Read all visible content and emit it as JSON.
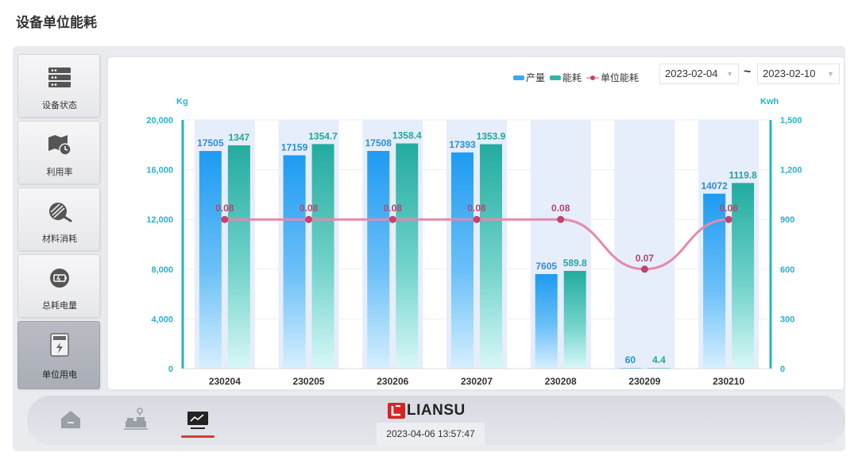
{
  "page": {
    "title": "设备单位能耗"
  },
  "sidebar": {
    "items": [
      {
        "label": "设备状态",
        "icon": "server-rack-icon",
        "active": false
      },
      {
        "label": "利用率",
        "icon": "map-clock-icon",
        "active": false
      },
      {
        "label": "材料消耗",
        "icon": "material-roll-icon",
        "active": false
      },
      {
        "label": "总耗电量",
        "icon": "battery-icon",
        "active": false
      },
      {
        "label": "单位用电",
        "icon": "power-meter-icon",
        "active": true
      }
    ]
  },
  "filters": {
    "start_date": "2023-02-04",
    "end_date": "2023-02-10",
    "separator": "~"
  },
  "legend": [
    {
      "label": "产量",
      "color": "#3aa8f5"
    },
    {
      "label": "能耗",
      "color": "#2db7ad"
    },
    {
      "label": "单位能耗",
      "color": "#c0446f"
    }
  ],
  "chart_data": {
    "type": "bar",
    "categories": [
      "230204",
      "230205",
      "230206",
      "230207",
      "230208",
      "230209",
      "230210"
    ],
    "series": [
      {
        "name": "产量",
        "type": "bar",
        "axis": "left",
        "values": [
          17505,
          17159,
          17508,
          17393,
          7605,
          60,
          14072
        ],
        "labels": [
          "17505",
          "17159",
          "17508",
          "17393",
          "7605",
          "60",
          "14072"
        ]
      },
      {
        "name": "能耗",
        "type": "bar",
        "axis": "right",
        "values": [
          1347,
          1354.7,
          1358.4,
          1353.9,
          589.8,
          4.4,
          1119.8
        ],
        "labels": [
          "1347",
          "1354.7",
          "1358.4",
          "1353.9",
          "589.8",
          "4.4",
          "1119.8"
        ]
      },
      {
        "name": "单位能耗",
        "type": "line",
        "values": [
          0.08,
          0.08,
          0.08,
          0.08,
          0.08,
          0.07,
          0.08
        ],
        "labels": [
          "0.08",
          "0.08",
          "0.08",
          "0.08",
          "0.08",
          "0.07",
          "0.08"
        ]
      }
    ],
    "y_left": {
      "label": "Kg",
      "min": 0,
      "max": 20000,
      "ticks": [
        "0",
        "4,000",
        "8,000",
        "12,000",
        "16,000",
        "20,000"
      ]
    },
    "y_right": {
      "label": "Kwh",
      "min": 0,
      "max": 1500,
      "ticks": [
        "0",
        "300",
        "600",
        "900",
        "1,200",
        "1,500"
      ]
    },
    "line_scale": {
      "min": 0.05,
      "max": 0.1
    },
    "colors": {
      "axis": "#25b3c9",
      "bar_bg": "#e6edfb"
    }
  },
  "footer": {
    "brand": "LIANSU",
    "datetime": "2023-04-06 13:57:47",
    "nav": [
      {
        "icon": "home-icon"
      },
      {
        "icon": "factory-icon"
      },
      {
        "icon": "monitor-chart-icon",
        "active": true
      }
    ]
  }
}
